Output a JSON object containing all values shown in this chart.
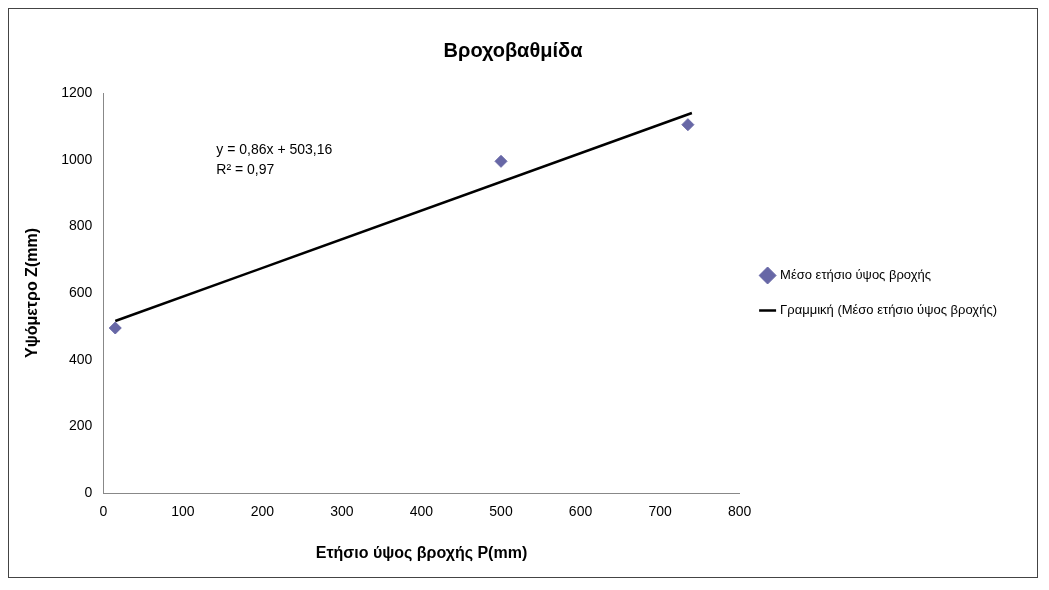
{
  "chart_data": {
    "type": "scatter",
    "title": "Βροχοβαθμίδα",
    "xlabel": "Ετήσιο ύψος βροχής P(mm)",
    "ylabel": "Υψόμετρο Z(mm)",
    "x": [
      15,
      500,
      735
    ],
    "series": [
      {
        "name": "Μέσο ετήσιο ύψος βροχής",
        "type": "scatter",
        "color": "#6767a6",
        "values": [
          495,
          995,
          1105
        ],
        "marker": "diamond"
      },
      {
        "name": "Γραμμική (Μέσο ετήσιο ύψος βροχής)",
        "type": "line",
        "color": "#000000",
        "x": [
          15,
          740
        ],
        "values": [
          516,
          1140
        ],
        "marker": "none"
      }
    ],
    "xlim": [
      0,
      800
    ],
    "xticks": [
      0,
      100,
      200,
      300,
      400,
      500,
      600,
      700,
      800
    ],
    "ylim": [
      0,
      1200
    ],
    "yticks": [
      0,
      200,
      400,
      600,
      800,
      1000,
      1200
    ],
    "grid": false,
    "legend": "right",
    "annotations": [
      "y = 0,86x + 503,16",
      "R² = 0,97"
    ]
  }
}
